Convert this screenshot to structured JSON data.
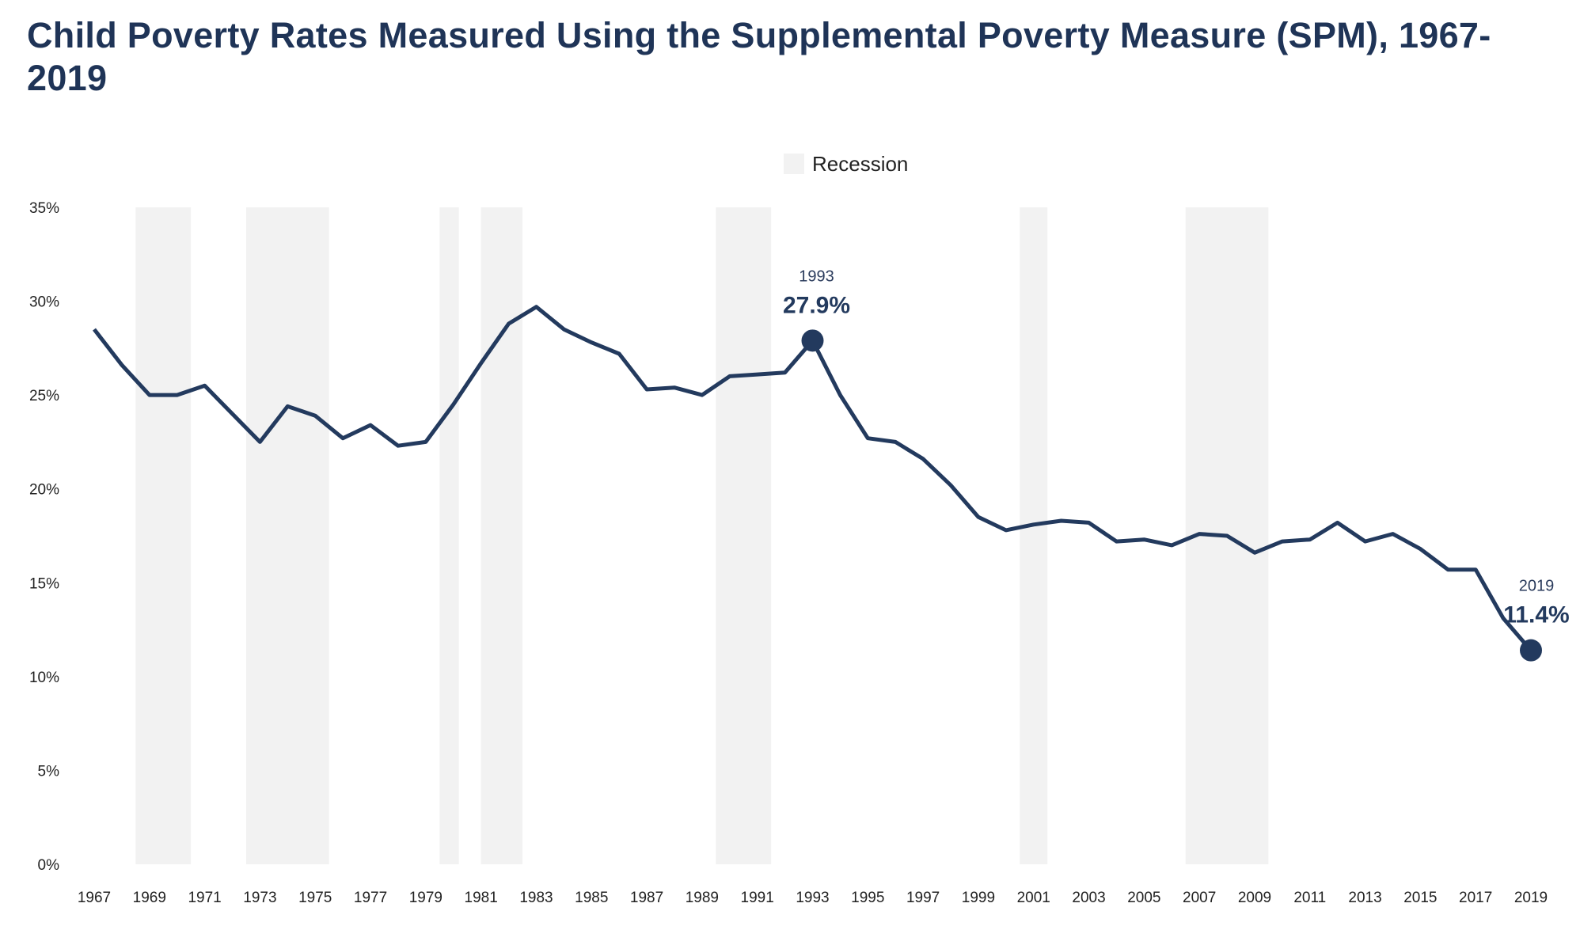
{
  "chart_data": {
    "type": "line",
    "title": "Child Poverty Rates Measured Using the Supplemental Poverty Measure (SPM), 1967-2019",
    "xlabel": "",
    "ylabel": "",
    "ylim": [
      0,
      35
    ],
    "yticks": [
      "0%",
      "5%",
      "10%",
      "15%",
      "20%",
      "25%",
      "30%",
      "35%"
    ],
    "xticks": [
      "1967",
      "1969",
      "1971",
      "1973",
      "1975",
      "1977",
      "1979",
      "1981",
      "1983",
      "1985",
      "1987",
      "1989",
      "1991",
      "1993",
      "1995",
      "1997",
      "1999",
      "2001",
      "2003",
      "2005",
      "2007",
      "2009",
      "2011",
      "2013",
      "2015",
      "2017",
      "2019"
    ],
    "grid": false,
    "legend": {
      "position": "top-center",
      "label": "Recession"
    },
    "colors": {
      "line": "#233a5e",
      "recession": "#f2f2f2",
      "title": "#1f3457"
    },
    "x": [
      1967,
      1968,
      1969,
      1970,
      1971,
      1972,
      1973,
      1974,
      1975,
      1976,
      1977,
      1978,
      1979,
      1980,
      1981,
      1982,
      1983,
      1984,
      1985,
      1986,
      1987,
      1988,
      1989,
      1990,
      1991,
      1992,
      1993,
      1994,
      1995,
      1996,
      1997,
      1998,
      1999,
      2000,
      2001,
      2002,
      2003,
      2004,
      2005,
      2006,
      2007,
      2008,
      2009,
      2010,
      2011,
      2012,
      2013,
      2014,
      2015,
      2016,
      2017,
      2018,
      2019
    ],
    "values": [
      28.5,
      26.6,
      25.0,
      25.0,
      25.5,
      24.0,
      22.5,
      24.4,
      23.9,
      22.7,
      23.4,
      22.3,
      22.5,
      24.5,
      26.7,
      28.8,
      29.7,
      28.5,
      27.8,
      27.2,
      25.3,
      25.4,
      25.0,
      26.0,
      26.1,
      26.2,
      27.9,
      25.0,
      22.7,
      22.5,
      21.6,
      20.2,
      18.5,
      17.8,
      18.1,
      18.3,
      18.2,
      17.2,
      17.3,
      17.0,
      17.6,
      17.5,
      16.6,
      17.2,
      17.3,
      18.2,
      17.2,
      17.6,
      16.8,
      15.7,
      15.7,
      13.1,
      11.4
    ],
    "recessions": [
      [
        1968.5,
        1970.5
      ],
      [
        1972.5,
        1975.5
      ],
      [
        1979.5,
        1980.2
      ],
      [
        1981.0,
        1982.5
      ],
      [
        1989.5,
        1991.5
      ],
      [
        2000.5,
        2001.5
      ],
      [
        2006.5,
        2009.5
      ]
    ],
    "annotations": [
      {
        "year": "1993",
        "label": "27.9%",
        "x": 1993,
        "y": 27.9
      },
      {
        "year": "2019",
        "label": "11.4%",
        "x": 2019,
        "y": 11.4
      }
    ]
  }
}
